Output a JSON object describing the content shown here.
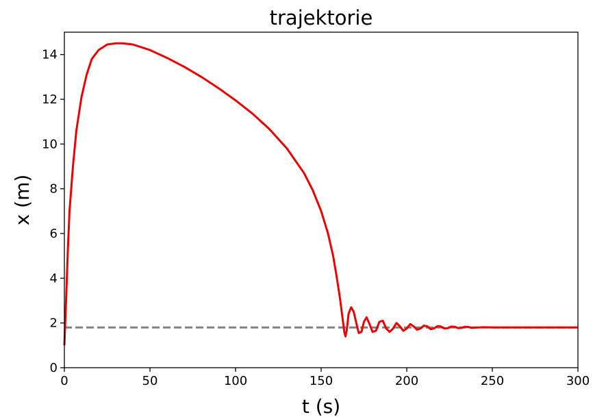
{
  "chart_data": {
    "type": "line",
    "title": "trajektorie",
    "xlabel": "t (s)",
    "ylabel": "x (m)",
    "xlim": [
      0,
      300
    ],
    "ylim": [
      0,
      15
    ],
    "xticks": [
      0,
      50,
      100,
      150,
      200,
      250,
      300
    ],
    "yticks": [
      0,
      2,
      4,
      6,
      8,
      10,
      12,
      14
    ],
    "grid": false,
    "reference_line": {
      "y": 1.8,
      "style": "dashed",
      "color": "#808080"
    },
    "series": [
      {
        "color": "#ee0000",
        "x": [
          0,
          1,
          2,
          3,
          5,
          7,
          10,
          13,
          16,
          20,
          25,
          30,
          34,
          40,
          50,
          60,
          70,
          80,
          90,
          100,
          110,
          120,
          130,
          140,
          145,
          150,
          154,
          157,
          159,
          161,
          162.5,
          163.5,
          164.2,
          165,
          166,
          167.5,
          169,
          170.5,
          172,
          173.5,
          175,
          176.5,
          178,
          180,
          182,
          184,
          186,
          188,
          190,
          192,
          194,
          196,
          198,
          200,
          202,
          204,
          206,
          208,
          210,
          212,
          214,
          216,
          218,
          220,
          222,
          224,
          226,
          228,
          230,
          232,
          234,
          236,
          238,
          240,
          245,
          250,
          260,
          270,
          280,
          290,
          300
        ],
        "y": [
          1.0,
          3.0,
          5.2,
          7.0,
          9.0,
          10.6,
          12.1,
          13.1,
          13.8,
          14.2,
          14.45,
          14.5,
          14.5,
          14.45,
          14.2,
          13.85,
          13.45,
          13.0,
          12.5,
          11.95,
          11.35,
          10.65,
          9.8,
          8.7,
          7.95,
          7.0,
          6.0,
          5.0,
          4.1,
          3.1,
          2.2,
          1.6,
          1.4,
          1.7,
          2.4,
          2.7,
          2.5,
          2.0,
          1.55,
          1.6,
          2.05,
          2.25,
          2.0,
          1.6,
          1.65,
          2.05,
          2.1,
          1.75,
          1.6,
          1.75,
          2.0,
          1.85,
          1.65,
          1.75,
          1.95,
          1.85,
          1.7,
          1.75,
          1.88,
          1.85,
          1.72,
          1.76,
          1.86,
          1.84,
          1.75,
          1.77,
          1.84,
          1.83,
          1.77,
          1.78,
          1.83,
          1.82,
          1.78,
          1.79,
          1.81,
          1.8,
          1.8,
          1.8,
          1.8,
          1.8,
          1.8
        ]
      }
    ]
  }
}
